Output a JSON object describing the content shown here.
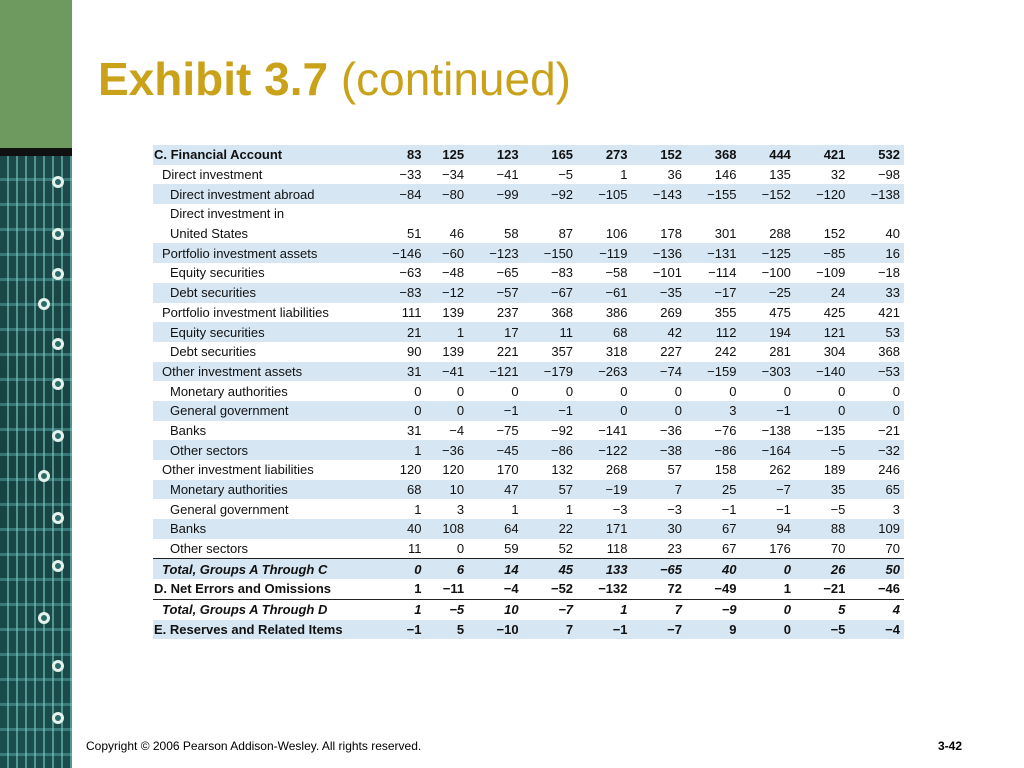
{
  "title": {
    "bold": "Exhibit 3.7",
    "rest": " (continued)"
  },
  "table": {
    "rows": [
      {
        "label": "C. Financial Account",
        "values": [
          "83",
          "125",
          "123",
          "165",
          "273",
          "152",
          "368",
          "444",
          "421",
          "532"
        ],
        "style": "bold",
        "indent": 0,
        "shade": true
      },
      {
        "label": "Direct investment",
        "values": [
          "−33",
          "−34",
          "−41",
          "−5",
          "1",
          "36",
          "146",
          "135",
          "32",
          "−98"
        ],
        "style": "",
        "indent": 1,
        "shade": false
      },
      {
        "label": "Direct investment abroad",
        "values": [
          "−84",
          "−80",
          "−99",
          "−92",
          "−105",
          "−143",
          "−155",
          "−152",
          "−120",
          "−138"
        ],
        "style": "",
        "indent": 2,
        "shade": true
      },
      {
        "label": "Direct investment in",
        "values": [
          "",
          "",
          "",
          "",
          "",
          "",
          "",
          "",
          "",
          ""
        ],
        "style": "",
        "indent": 2,
        "shade": false
      },
      {
        "label": "United States",
        "values": [
          "51",
          "46",
          "58",
          "87",
          "106",
          "178",
          "301",
          "288",
          "152",
          "40"
        ],
        "style": "",
        "indent": 2,
        "shade": false
      },
      {
        "label": "Portfolio investment assets",
        "values": [
          "−146",
          "−60",
          "−123",
          "−150",
          "−119",
          "−136",
          "−131",
          "−125",
          "−85",
          "16"
        ],
        "style": "",
        "indent": 1,
        "shade": true
      },
      {
        "label": "Equity securities",
        "values": [
          "−63",
          "−48",
          "−65",
          "−83",
          "−58",
          "−101",
          "−114",
          "−100",
          "−109",
          "−18"
        ],
        "style": "",
        "indent": 2,
        "shade": false
      },
      {
        "label": "Debt securities",
        "values": [
          "−83",
          "−12",
          "−57",
          "−67",
          "−61",
          "−35",
          "−17",
          "−25",
          "24",
          "33"
        ],
        "style": "",
        "indent": 2,
        "shade": true
      },
      {
        "label": "Portfolio investment liabilities",
        "values": [
          "111",
          "139",
          "237",
          "368",
          "386",
          "269",
          "355",
          "475",
          "425",
          "421"
        ],
        "style": "",
        "indent": 1,
        "shade": false
      },
      {
        "label": "Equity securities",
        "values": [
          "21",
          "1",
          "17",
          "11",
          "68",
          "42",
          "112",
          "194",
          "121",
          "53"
        ],
        "style": "",
        "indent": 2,
        "shade": true
      },
      {
        "label": "Debt securities",
        "values": [
          "90",
          "139",
          "221",
          "357",
          "318",
          "227",
          "242",
          "281",
          "304",
          "368"
        ],
        "style": "",
        "indent": 2,
        "shade": false
      },
      {
        "label": "Other investment assets",
        "values": [
          "31",
          "−41",
          "−121",
          "−179",
          "−263",
          "−74",
          "−159",
          "−303",
          "−140",
          "−53"
        ],
        "style": "",
        "indent": 1,
        "shade": true
      },
      {
        "label": "Monetary authorities",
        "values": [
          "0",
          "0",
          "0",
          "0",
          "0",
          "0",
          "0",
          "0",
          "0",
          "0"
        ],
        "style": "",
        "indent": 2,
        "shade": false
      },
      {
        "label": "General government",
        "values": [
          "0",
          "0",
          "−1",
          "−1",
          "0",
          "0",
          "3",
          "−1",
          "0",
          "0"
        ],
        "style": "",
        "indent": 2,
        "shade": true
      },
      {
        "label": "Banks",
        "values": [
          "31",
          "−4",
          "−75",
          "−92",
          "−141",
          "−36",
          "−76",
          "−138",
          "−135",
          "−21"
        ],
        "style": "",
        "indent": 2,
        "shade": false
      },
      {
        "label": "Other sectors",
        "values": [
          "1",
          "−36",
          "−45",
          "−86",
          "−122",
          "−38",
          "−86",
          "−164",
          "−5",
          "−32"
        ],
        "style": "",
        "indent": 2,
        "shade": true
      },
      {
        "label": "Other investment liabilities",
        "values": [
          "120",
          "120",
          "170",
          "132",
          "268",
          "57",
          "158",
          "262",
          "189",
          "246"
        ],
        "style": "",
        "indent": 1,
        "shade": false
      },
      {
        "label": "Monetary authorities",
        "values": [
          "68",
          "10",
          "47",
          "57",
          "−19",
          "7",
          "25",
          "−7",
          "35",
          "65"
        ],
        "style": "",
        "indent": 2,
        "shade": true
      },
      {
        "label": "General government",
        "values": [
          "1",
          "3",
          "1",
          "1",
          "−3",
          "−3",
          "−1",
          "−1",
          "−5",
          "3"
        ],
        "style": "",
        "indent": 2,
        "shade": false
      },
      {
        "label": "Banks",
        "values": [
          "40",
          "108",
          "64",
          "22",
          "171",
          "30",
          "67",
          "94",
          "88",
          "109"
        ],
        "style": "",
        "indent": 2,
        "shade": true
      },
      {
        "label": "Other sectors",
        "values": [
          "11",
          "0",
          "59",
          "52",
          "118",
          "23",
          "67",
          "176",
          "70",
          "70"
        ],
        "style": "",
        "indent": 2,
        "shade": false,
        "ruled": true
      },
      {
        "label": "Total, Groups A Through C",
        "values": [
          "0",
          "6",
          "14",
          "45",
          "133",
          "−65",
          "40",
          "0",
          "26",
          "50"
        ],
        "style": "bi",
        "indent": 1,
        "shade": true
      },
      {
        "label": "D. Net Errors and Omissions",
        "values": [
          "1",
          "−11",
          "−4",
          "−52",
          "−132",
          "72",
          "−49",
          "1",
          "−21",
          "−46"
        ],
        "style": "bold",
        "indent": 0,
        "shade": false,
        "ruled": true
      },
      {
        "label": "Total, Groups A Through D",
        "values": [
          "1",
          "−5",
          "10",
          "−7",
          "1",
          "7",
          "−9",
          "0",
          "5",
          "4"
        ],
        "style": "bi",
        "indent": 1,
        "shade": false
      },
      {
        "label": "E. Reserves and Related Items",
        "values": [
          "−1",
          "5",
          "−10",
          "7",
          "−1",
          "−7",
          "9",
          "0",
          "−5",
          "−4"
        ],
        "style": "bold",
        "indent": 0,
        "shade": true
      }
    ]
  },
  "footer": {
    "copyright": "Copyright © 2006 Pearson Addison-Wesley. All rights reserved.",
    "page": "3-42"
  }
}
